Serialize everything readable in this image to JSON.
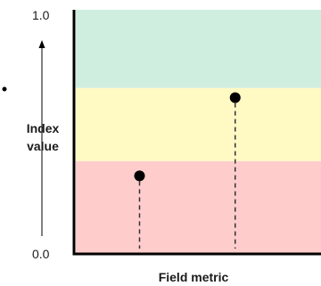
{
  "chart_data": {
    "type": "scatter",
    "title": "",
    "xlabel": "Field metric",
    "ylabel": [
      "Index",
      "value"
    ],
    "ylim": [
      0.0,
      1.0
    ],
    "yticks": [
      "1.0",
      "0.0"
    ],
    "bands": [
      {
        "name": "",
        "from": 0.0,
        "to": 0.38,
        "color": "#ffcccc"
      },
      {
        "name": "",
        "from": 0.38,
        "to": 0.68,
        "color": "#fff9c4"
      },
      {
        "name": "",
        "from": 0.68,
        "to": 1.0,
        "color": "#cfeee0"
      }
    ],
    "points": [
      {
        "x": 0.26,
        "y": 0.32
      },
      {
        "x": 0.65,
        "y": 0.64
      }
    ],
    "drop_lines": true,
    "colors": {
      "point": "#000000",
      "axis": "#000000",
      "dropline": "#333333"
    }
  }
}
